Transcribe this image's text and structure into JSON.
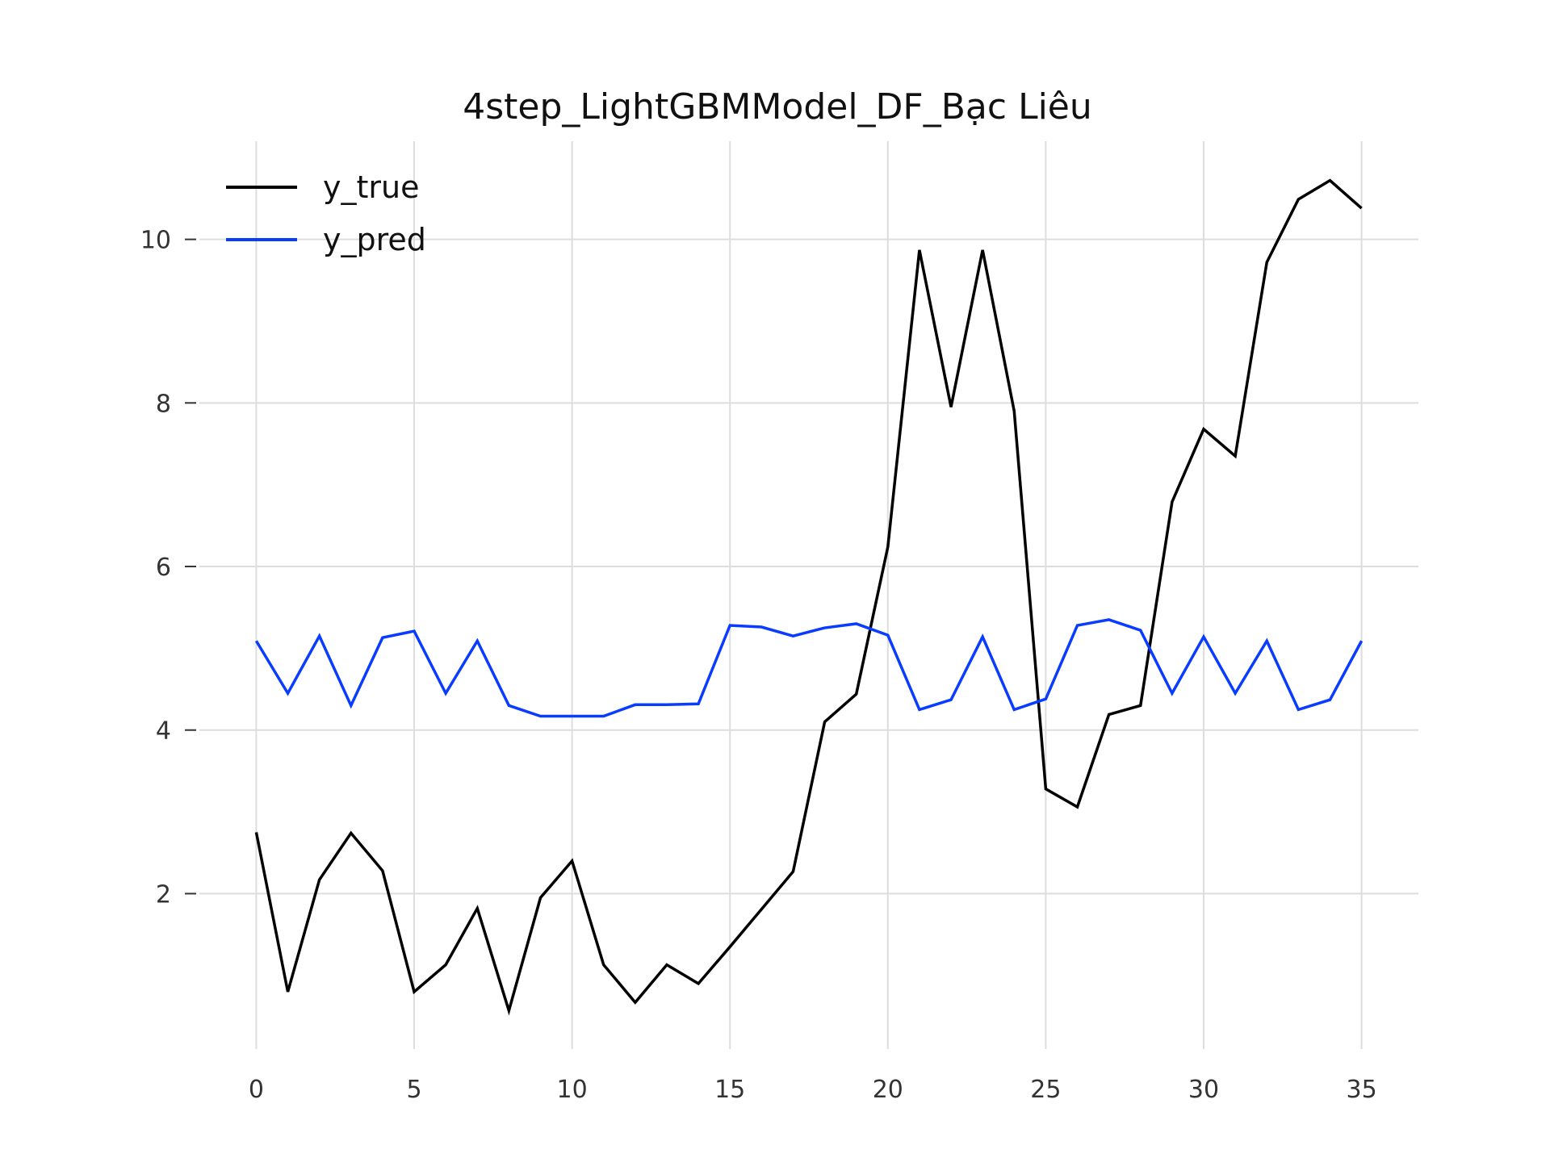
{
  "chart_data": {
    "type": "line",
    "title": "4step_LightGBMModel_DF_Bạc Liêu",
    "xlabel": "",
    "ylabel": "",
    "xlim": [
      -1.8,
      36.8
    ],
    "ylim": [
      0.1,
      11.2
    ],
    "x_ticks": [
      0,
      5,
      10,
      15,
      20,
      25,
      30,
      35
    ],
    "y_ticks": [
      2,
      4,
      6,
      8,
      10
    ],
    "grid": true,
    "legend_position": "top-left",
    "x": [
      0,
      1,
      2,
      3,
      4,
      5,
      6,
      7,
      8,
      9,
      10,
      11,
      12,
      13,
      14,
      15,
      16,
      17,
      18,
      19,
      20,
      21,
      22,
      23,
      24,
      25,
      26,
      27,
      28,
      29,
      30,
      31,
      32,
      33,
      34,
      35
    ],
    "series": [
      {
        "name": "y_true",
        "color": "#000000",
        "values": [
          2.75,
          0.8,
          2.17,
          2.74,
          2.28,
          0.8,
          1.13,
          1.82,
          0.57,
          1.95,
          2.4,
          1.13,
          0.67,
          1.13,
          0.9,
          1.35,
          1.81,
          2.27,
          4.1,
          4.44,
          6.24,
          9.87,
          7.95,
          9.87,
          7.9,
          3.28,
          3.06,
          4.19,
          4.3,
          6.79,
          7.68,
          7.35,
          9.72,
          10.49,
          10.72,
          10.38
        ]
      },
      {
        "name": "y_pred",
        "color": "#0a3cff",
        "values": [
          5.09,
          4.45,
          5.15,
          4.3,
          5.13,
          5.21,
          4.45,
          5.09,
          4.3,
          4.17,
          4.17,
          4.17,
          4.31,
          4.31,
          4.32,
          5.28,
          5.26,
          5.15,
          5.25,
          5.3,
          5.16,
          4.25,
          4.37,
          5.14,
          4.25,
          4.38,
          5.28,
          5.35,
          5.22,
          4.45,
          5.14,
          4.45,
          5.09,
          4.25,
          4.37,
          5.09
        ]
      }
    ]
  }
}
